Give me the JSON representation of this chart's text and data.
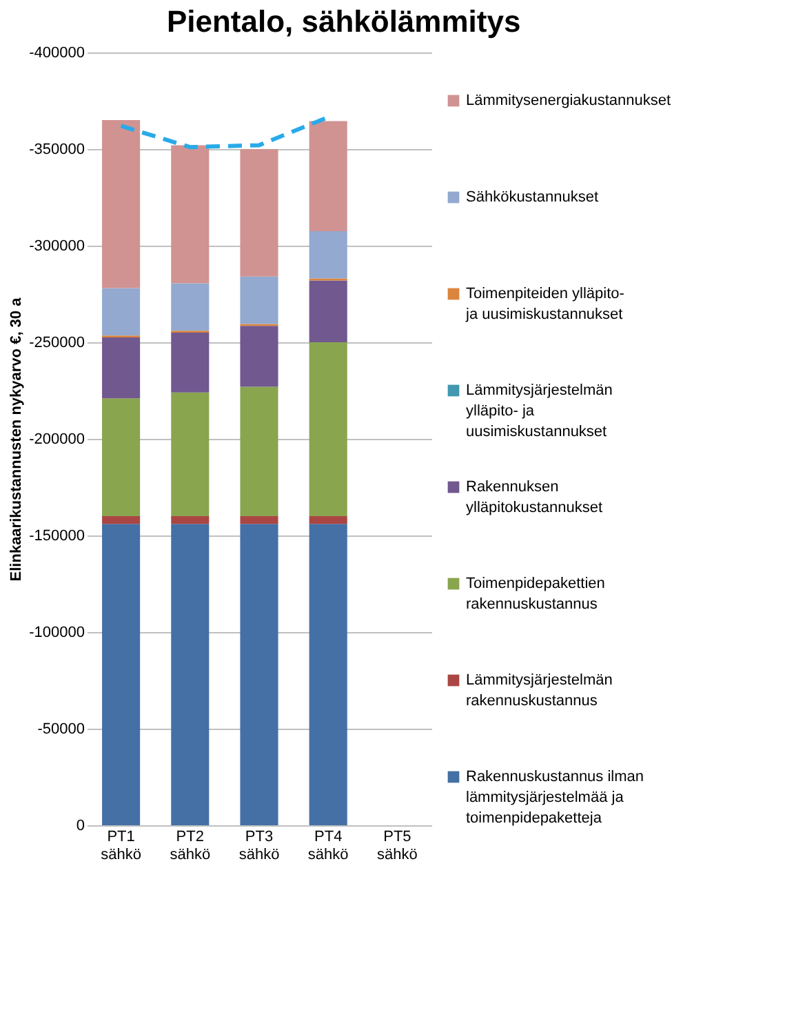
{
  "chart_data": {
    "type": "bar",
    "stacked": true,
    "title": "Pientalo, sähkölämmitys",
    "ylabel": "Elinkaarikustannusten nykyarvo €, 30 a",
    "categories": [
      "PT1 sähkö",
      "PT2 sähkö",
      "PT3 sähkö",
      "PT4 sähkö",
      "PT5 sähkö"
    ],
    "ylim": [
      0,
      -400000
    ],
    "yticks": [
      0,
      -50000,
      -100000,
      -150000,
      -200000,
      -250000,
      -300000,
      -350000,
      -400000
    ],
    "grid": "y",
    "legend": "right",
    "series": [
      {
        "name": "Rakennuskustannus ilman lämmitysjärjestelmää ja toimenpidepaketteja",
        "color": "#4470a5",
        "values": [
          -156000,
          -156000,
          -156000,
          -156000,
          null
        ]
      },
      {
        "name": "Lämmitysjärjestelmän rakennuskustannus",
        "color": "#aa4643",
        "values": [
          -4000,
          -4000,
          -4000,
          -4000,
          null
        ]
      },
      {
        "name": "Toimenpidepakettien rakennuskustannus",
        "color": "#89a54e",
        "values": [
          -61000,
          -64000,
          -67000,
          -90000,
          null
        ]
      },
      {
        "name": "Rakennuksen ylläpitokustannukset",
        "color": "#71588f",
        "values": [
          -31500,
          -31000,
          -31500,
          -32000,
          null
        ]
      },
      {
        "name": "Lämmitysjärjestelmän ylläpito- ja uusimiskustannukset",
        "color": "#4198af",
        "values": [
          0,
          0,
          0,
          0,
          null
        ]
      },
      {
        "name": "Toimenpiteiden ylläpito- ja uusimiskustannukset",
        "color": "#db843d",
        "values": [
          -1000,
          -1000,
          -1000,
          -1000,
          null
        ]
      },
      {
        "name": "Sähkökustannukset",
        "color": "#93a9cf",
        "values": [
          -24500,
          -24500,
          -24500,
          -24500,
          null
        ]
      },
      {
        "name": "Lämmitysenergiakustannukset",
        "color": "#d09392",
        "values": [
          -87000,
          -71500,
          -66000,
          -57000,
          null
        ]
      },
      {
        "type": "line",
        "color": "#29aae8",
        "line_style": "dashed",
        "values": [
          -362000,
          -351000,
          -352000,
          -366500,
          null
        ]
      }
    ]
  }
}
